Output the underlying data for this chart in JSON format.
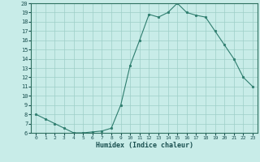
{
  "title": "",
  "xlabel": "Humidex (Indice chaleur)",
  "x": [
    0,
    1,
    2,
    3,
    4,
    5,
    6,
    7,
    8,
    9,
    10,
    11,
    12,
    13,
    14,
    15,
    16,
    17,
    18,
    19,
    20,
    21,
    22,
    23
  ],
  "y": [
    8.0,
    7.5,
    7.0,
    6.5,
    6.0,
    6.0,
    6.1,
    6.2,
    6.5,
    9.0,
    13.3,
    16.0,
    18.8,
    18.5,
    19.0,
    20.0,
    19.0,
    18.7,
    18.5,
    17.0,
    15.5,
    14.0,
    12.0,
    11.0
  ],
  "line_color": "#2e7d6e",
  "marker_color": "#2e7d6e",
  "bg_color": "#c8ece8",
  "grid_color": "#9ecec8",
  "axis_color": "#2e7060",
  "text_color": "#1a5050",
  "ylim": [
    6,
    20
  ],
  "xlim": [
    -0.5,
    23.5
  ],
  "yticks": [
    6,
    7,
    8,
    9,
    10,
    11,
    12,
    13,
    14,
    15,
    16,
    17,
    18,
    19,
    20
  ],
  "xticks": [
    0,
    1,
    2,
    3,
    4,
    5,
    6,
    7,
    8,
    9,
    10,
    11,
    12,
    13,
    14,
    15,
    16,
    17,
    18,
    19,
    20,
    21,
    22,
    23
  ]
}
